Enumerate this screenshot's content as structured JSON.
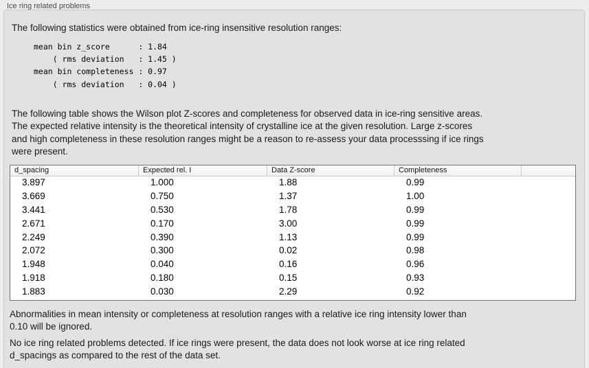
{
  "section": {
    "label": "Ice ring related problems"
  },
  "intro": {
    "text": "The following statistics were obtained from ice-ring insensitive resolution ranges:"
  },
  "stats": {
    "lines": [
      "mean bin z_score      : 1.84",
      "    ( rms deviation   : 1.45 )",
      "mean bin completeness : 0.97",
      "    ( rms deviation   : 0.04 )"
    ]
  },
  "description": {
    "lines": [
      "The following table shows the Wilson plot Z-scores and completeness for observed data in ice-ring sensitive areas.",
      "The expected relative intensity is the theoretical intensity of crystalline ice at the given resolution. Large z-scores",
      "and high completeness in these resolution ranges might be a reason to re-assess your data processsing if ice rings",
      "were present."
    ]
  },
  "table": {
    "columns": [
      "d_spacing",
      "Expected rel. I",
      "Data Z-score",
      "Completeness"
    ],
    "rows": [
      {
        "d_spacing": "3.897",
        "expected_rel_i": "1.000",
        "data_z_score": "1.88",
        "completeness": "0.99"
      },
      {
        "d_spacing": "3.669",
        "expected_rel_i": "0.750",
        "data_z_score": "1.37",
        "completeness": "1.00"
      },
      {
        "d_spacing": "3.441",
        "expected_rel_i": "0.530",
        "data_z_score": "1.78",
        "completeness": "0.99"
      },
      {
        "d_spacing": "2.671",
        "expected_rel_i": "0.170",
        "data_z_score": "3.00",
        "completeness": "0.99"
      },
      {
        "d_spacing": "2.249",
        "expected_rel_i": "0.390",
        "data_z_score": "1.13",
        "completeness": "0.99"
      },
      {
        "d_spacing": "2.072",
        "expected_rel_i": "0.300",
        "data_z_score": "0.02",
        "completeness": "0.98"
      },
      {
        "d_spacing": "1.948",
        "expected_rel_i": "0.040",
        "data_z_score": "0.16",
        "completeness": "0.96"
      },
      {
        "d_spacing": "1.918",
        "expected_rel_i": "0.180",
        "data_z_score": "0.15",
        "completeness": "0.93"
      },
      {
        "d_spacing": "1.883",
        "expected_rel_i": "0.030",
        "data_z_score": "2.29",
        "completeness": "0.92"
      }
    ]
  },
  "ignore_note": {
    "lines": [
      "Abnormalities in mean intensity or completeness at resolution ranges with a relative ice ring intensity lower than",
      "0.10 will be ignored."
    ]
  },
  "conclusion": {
    "lines": [
      "No ice ring related problems detected. If ice rings were present, the data does not look worse at ice ring related",
      "d_spacings as compared to the rest of the data set."
    ]
  },
  "colors": {
    "background": "#ededed",
    "panel": "#e2e2e2",
    "panel_border": "#c7c7c7",
    "table_border": "#737373",
    "header_bg": "#f6f6f6",
    "text": "#1a1a1a"
  }
}
